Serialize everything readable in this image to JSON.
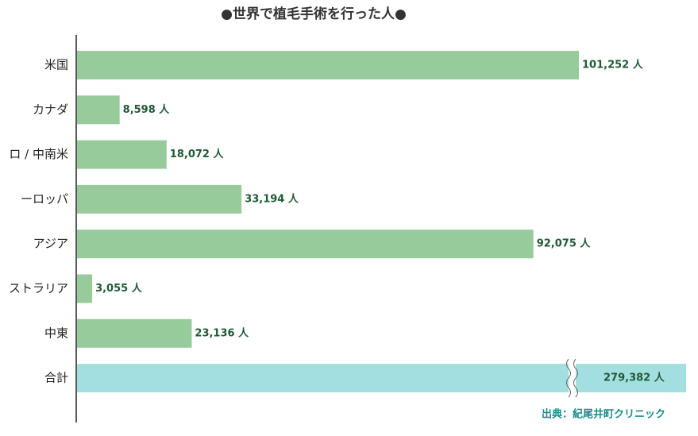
{
  "chart_data": {
    "type": "bar",
    "orientation": "horizontal",
    "title": "●世界で植毛手術を行った人●",
    "categories": [
      "米国",
      "カナダ",
      "ロ / 中南米",
      "ーロッパ",
      "アジア",
      "ストラリア",
      "中東"
    ],
    "values": [
      101252,
      8598,
      18072,
      33194,
      92075,
      3055,
      23136
    ],
    "value_labels": [
      "101,252 人",
      "8,598 人",
      "18,072 人",
      "33,194 人",
      "92,075 人",
      "3,055 人",
      "23,136 人"
    ],
    "color": "#97cb9c",
    "total": {
      "label": "合計",
      "value": 279382,
      "value_label": "279,382 人",
      "color": "#a3dfe0",
      "broken": true
    },
    "source": "出典：紀尾井町クリニック"
  }
}
